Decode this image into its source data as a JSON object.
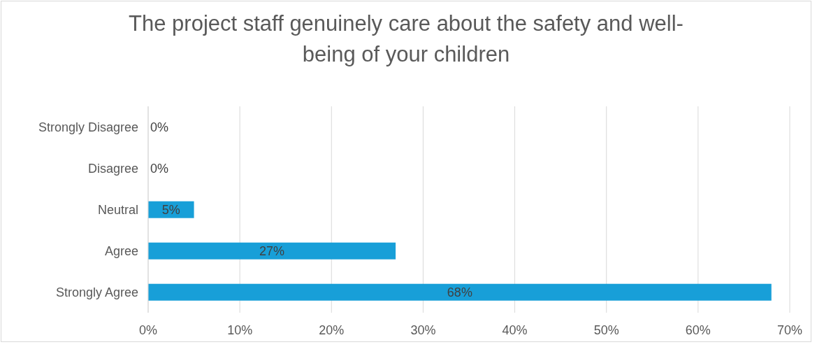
{
  "chart_data": {
    "type": "bar",
    "orientation": "horizontal",
    "title": "The project staff genuinely care about the safety and well-being of your children",
    "categories": [
      "Strongly Disagree",
      "Disagree",
      "Neutral",
      "Agree",
      "Strongly Agree"
    ],
    "values": [
      0,
      0,
      5,
      27,
      68
    ],
    "value_labels": [
      "0%",
      "0%",
      "5%",
      "27%",
      "68%"
    ],
    "color": "#189fd8",
    "xlim": [
      0,
      70
    ],
    "xticks": [
      {
        "value": 0,
        "label": "0%"
      },
      {
        "value": 10,
        "label": "10%"
      },
      {
        "value": 20,
        "label": "20%"
      },
      {
        "value": 30,
        "label": "30%"
      },
      {
        "value": 40,
        "label": "40%"
      },
      {
        "value": 50,
        "label": "50%"
      },
      {
        "value": 60,
        "label": "60%"
      },
      {
        "value": 70,
        "label": "70%"
      }
    ],
    "grid": "x"
  }
}
